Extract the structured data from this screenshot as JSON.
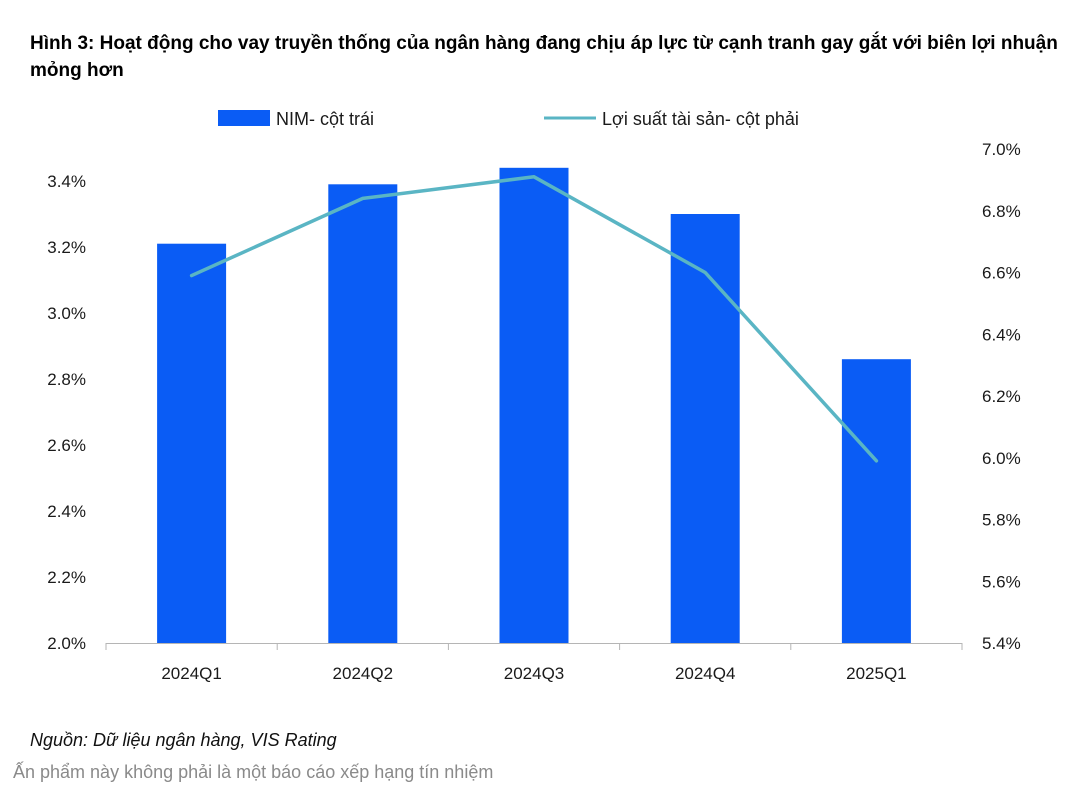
{
  "title": "Hình 3: Hoạt động cho vay truyền thống của ngân hàng đang chịu áp lực từ cạnh tranh gay gắt với biên lợi nhuận mỏng hơn",
  "source": "Nguồn: Dữ liệu ngân hàng, VIS Rating",
  "disclaimer": "Ấn phẩm này không phải là một báo cáo xếp hạng tín nhiệm",
  "chart_data": {
    "type": "bar",
    "categories": [
      "2024Q1",
      "2024Q2",
      "2024Q3",
      "2024Q4",
      "2025Q1"
    ],
    "series": [
      {
        "name": "NIM- cột trái",
        "type": "bar",
        "axis": "left",
        "values": [
          3.21,
          3.39,
          3.44,
          3.3,
          2.86
        ],
        "color": "#0a5cf5"
      },
      {
        "name": "Lợi suất tài sản- cột phải",
        "type": "line",
        "axis": "right",
        "values": [
          6.59,
          6.84,
          6.91,
          6.6,
          5.99
        ],
        "color": "#5ab5c4"
      }
    ],
    "y_left": {
      "min": 2.0,
      "max": 3.5,
      "ticks": [
        2.0,
        2.2,
        2.4,
        2.6,
        2.8,
        3.0,
        3.2,
        3.4
      ],
      "tick_labels": [
        "2.0%",
        "2.2%",
        "2.4%",
        "2.6%",
        "2.8%",
        "3.0%",
        "3.2%",
        "3.4%"
      ]
    },
    "y_right": {
      "min": 5.4,
      "max": 7.0,
      "ticks": [
        5.4,
        5.6,
        5.8,
        6.0,
        6.2,
        6.4,
        6.6,
        6.8,
        7.0
      ],
      "tick_labels": [
        "5.4%",
        "5.6%",
        "5.8%",
        "6.0%",
        "6.2%",
        "6.4%",
        "6.6%",
        "6.8%",
        "7.0%"
      ]
    },
    "grid": false,
    "legend": "top"
  }
}
